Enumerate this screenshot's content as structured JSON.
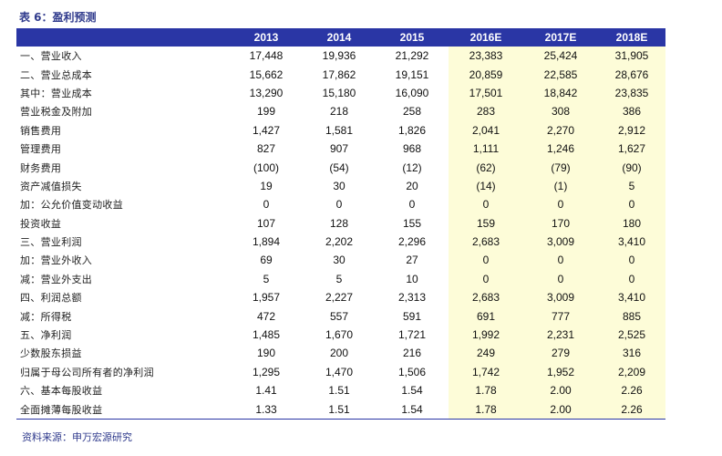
{
  "title": "表 6：盈利预测",
  "source": "资料来源：申万宏源研究",
  "columns": [
    "",
    "2013",
    "2014",
    "2015",
    "2016E",
    "2017E",
    "2018E"
  ],
  "rows": [
    {
      "label": "一、营业收入",
      "values": [
        "17,448",
        "19,936",
        "21,292",
        "23,383",
        "25,424",
        "31,905"
      ]
    },
    {
      "label": "二、营业总成本",
      "values": [
        "15,662",
        "17,862",
        "19,151",
        "20,859",
        "22,585",
        "28,676"
      ]
    },
    {
      "label": "其中：营业成本",
      "values": [
        "13,290",
        "15,180",
        "16,090",
        "17,501",
        "18,842",
        "23,835"
      ]
    },
    {
      "label": "营业税金及附加",
      "values": [
        "199",
        "218",
        "258",
        "283",
        "308",
        "386"
      ]
    },
    {
      "label": "销售费用",
      "values": [
        "1,427",
        "1,581",
        "1,826",
        "2,041",
        "2,270",
        "2,912"
      ]
    },
    {
      "label": "管理费用",
      "values": [
        "827",
        "907",
        "968",
        "1,111",
        "1,246",
        "1,627"
      ]
    },
    {
      "label": "财务费用",
      "values": [
        "(100)",
        "(54)",
        "(12)",
        "(62)",
        "(79)",
        "(90)"
      ]
    },
    {
      "label": "资产减值损失",
      "values": [
        "19",
        "30",
        "20",
        "(14)",
        "(1)",
        "5"
      ]
    },
    {
      "label": "加：公允价值变动收益",
      "values": [
        "0",
        "0",
        "0",
        "0",
        "0",
        "0"
      ]
    },
    {
      "label": "投资收益",
      "values": [
        "107",
        "128",
        "155",
        "159",
        "170",
        "180"
      ]
    },
    {
      "label": "三、营业利润",
      "values": [
        "1,894",
        "2,202",
        "2,296",
        "2,683",
        "3,009",
        "3,410"
      ]
    },
    {
      "label": "加：营业外收入",
      "values": [
        "69",
        "30",
        "27",
        "0",
        "0",
        "0"
      ]
    },
    {
      "label": "减：营业外支出",
      "values": [
        "5",
        "5",
        "10",
        "0",
        "0",
        "0"
      ]
    },
    {
      "label": "四、利润总额",
      "values": [
        "1,957",
        "2,227",
        "2,313",
        "2,683",
        "3,009",
        "3,410"
      ]
    },
    {
      "label": "减：所得税",
      "values": [
        "472",
        "557",
        "591",
        "691",
        "777",
        "885"
      ]
    },
    {
      "label": "五、净利润",
      "values": [
        "1,485",
        "1,670",
        "1,721",
        "1,992",
        "2,231",
        "2,525"
      ]
    },
    {
      "label": "少数股东损益",
      "values": [
        "190",
        "200",
        "216",
        "249",
        "279",
        "316"
      ]
    },
    {
      "label": "归属于母公司所有者的净利润",
      "values": [
        "1,295",
        "1,470",
        "1,506",
        "1,742",
        "1,952",
        "2,209"
      ]
    },
    {
      "label": "六、基本每股收益",
      "values": [
        "1.41",
        "1.51",
        "1.54",
        "1.78",
        "2.00",
        "2.26"
      ]
    },
    {
      "label": "全面摊薄每股收益",
      "values": [
        "1.33",
        "1.51",
        "1.54",
        "1.78",
        "2.00",
        "2.26"
      ]
    }
  ],
  "colors": {
    "header_bg": "#2a36a5",
    "estimate_bg": "#fdfcd8",
    "title": "#2f3a8c"
  }
}
